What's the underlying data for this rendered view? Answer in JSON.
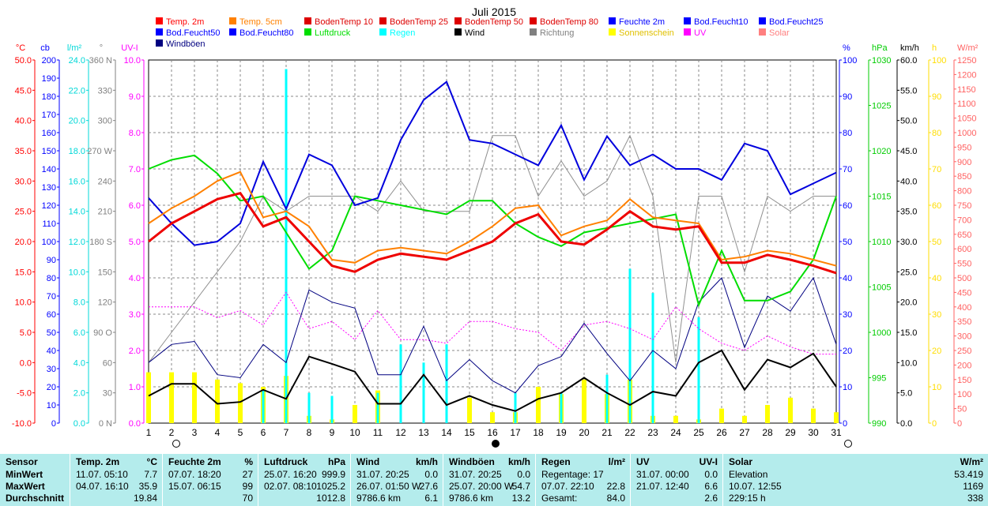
{
  "chart_data": {
    "type": "line",
    "title": "Juli 2015",
    "x": [
      1,
      2,
      3,
      4,
      5,
      6,
      7,
      8,
      9,
      10,
      11,
      12,
      13,
      14,
      15,
      16,
      17,
      18,
      19,
      20,
      21,
      22,
      23,
      24,
      25,
      26,
      27,
      28,
      29,
      30,
      31
    ],
    "axes_left": [
      {
        "unit": "°C",
        "ticks": [
          "50.0",
          "45.0",
          "40.0",
          "35.0",
          "30.0",
          "25.0",
          "20.0",
          "15.0",
          "10.0",
          "5.0",
          "0.0",
          "-5.0",
          "-10.0"
        ],
        "color": "#ff0000"
      },
      {
        "unit": "cb",
        "ticks": [
          "200",
          "190",
          "180",
          "170",
          "160",
          "150",
          "140",
          "130",
          "120",
          "110",
          "100",
          "90",
          "80",
          "70",
          "60",
          "50",
          "40",
          "30",
          "20",
          "10",
          "0"
        ],
        "color": "#0000ff"
      },
      {
        "unit": "l/m²",
        "ticks": [
          "24.0",
          "22.0",
          "20.0",
          "18.0",
          "16.0",
          "14.0",
          "12.0",
          "10.0",
          "8.0",
          "6.0",
          "4.0",
          "2.0",
          "0.0"
        ],
        "color": "#00d8d8"
      },
      {
        "unit": "°",
        "ticks": [
          "360 N",
          "330",
          "300",
          "270 W",
          "240",
          "210",
          "180 S",
          "150",
          "120",
          "90 O",
          "60",
          "30",
          "0 N"
        ],
        "color": "#808080"
      },
      {
        "unit": "UV-I",
        "ticks": [
          "10.0",
          "9.0",
          "8.0",
          "7.0",
          "6.0",
          "5.0",
          "4.0",
          "3.0",
          "2.0",
          "1.0",
          "0.0"
        ],
        "color": "#ff00ff"
      }
    ],
    "axes_right": [
      {
        "unit": "%",
        "ticks": [
          "100",
          "90",
          "80",
          "70",
          "60",
          "50",
          "40",
          "30",
          "20",
          "10",
          "0"
        ],
        "color": "#0000ff"
      },
      {
        "unit": "hPa",
        "ticks": [
          "1030",
          "1025",
          "1020",
          "1015",
          "1010",
          "1005",
          "1000",
          "995",
          "990"
        ],
        "color": "#00cc00"
      },
      {
        "unit": "km/h",
        "ticks": [
          "60.0",
          "55.0",
          "50.0",
          "45.0",
          "40.0",
          "35.0",
          "30.0",
          "25.0",
          "20.0",
          "15.0",
          "10.0",
          "5.0",
          "0.0"
        ],
        "color": "#000000"
      },
      {
        "unit": "h",
        "ticks": [
          "100",
          "90",
          "80",
          "70",
          "60",
          "50",
          "40",
          "30",
          "20",
          "10",
          "0"
        ],
        "color": "#ffdd00"
      },
      {
        "unit": "W/m²",
        "ticks": [
          "1250",
          "1200",
          "1150",
          "1100",
          "1050",
          "1000",
          "950",
          "900",
          "850",
          "800",
          "750",
          "700",
          "650",
          "600",
          "550",
          "500",
          "450",
          "400",
          "350",
          "300",
          "250",
          "200",
          "150",
          "100",
          "50",
          "0"
        ],
        "color": "#ff6060"
      }
    ],
    "legend": [
      {
        "label": "Temp. 2m",
        "color": "#ff0000"
      },
      {
        "label": "Temp. 5cm",
        "color": "#ff8000"
      },
      {
        "label": "BodenTemp 10",
        "color": "#dd0000"
      },
      {
        "label": "BodenTemp 25",
        "color": "#dd0000"
      },
      {
        "label": "BodenTemp 50",
        "color": "#dd0000"
      },
      {
        "label": "BodenTemp 80",
        "color": "#dd0000"
      },
      {
        "label": "Feuchte 2m",
        "color": "#0000ff"
      },
      {
        "label": "Bod.Feucht10",
        "color": "#0000ff"
      },
      {
        "label": "Bod.Feucht25",
        "color": "#0000ff"
      },
      {
        "label": "Bod.Feucht50",
        "color": "#0000ff"
      },
      {
        "label": "Bod.Feucht80",
        "color": "#0000ff"
      },
      {
        "label": "Luftdruck",
        "color": "#00dd00"
      },
      {
        "label": "Regen",
        "color": "#00ffff"
      },
      {
        "label": "Wind",
        "color": "#000000"
      },
      {
        "label": "Richtung",
        "color": "#808080"
      },
      {
        "label": "Sonnenschein",
        "color": "#ffff00"
      },
      {
        "label": "UV",
        "color": "#ff00ff"
      },
      {
        "label": "Solar",
        "color": "#ff8080"
      },
      {
        "label": "Windböen",
        "color": "#000080"
      }
    ],
    "series": [
      {
        "name": "Temp. 2m",
        "values": [
          20.0,
          23.0,
          25.0,
          27.0,
          28.0,
          22.5,
          24.0,
          20.0,
          16.0,
          15.0,
          17.0,
          18.0,
          17.5,
          17.0,
          18.5,
          20.0,
          23.0,
          24.5,
          20.0,
          19.5,
          22.0,
          25.0,
          22.5,
          22.0,
          22.5,
          16.5,
          16.5,
          17.8,
          17.0,
          16.0,
          14.8
        ]
      },
      {
        "name": "Temp. 5cm",
        "values": [
          23.0,
          25.5,
          27.5,
          30.0,
          31.5,
          24.0,
          25.0,
          22.5,
          17.0,
          16.5,
          18.5,
          19.0,
          18.5,
          18.0,
          20.0,
          22.5,
          25.5,
          26.0,
          21.0,
          22.5,
          23.5,
          27.0,
          24.0,
          23.5,
          23.0,
          17.0,
          17.5,
          18.5,
          18.0,
          17.0,
          16.0
        ]
      },
      {
        "name": "Feuchte 2m",
        "values": [
          62,
          55,
          49,
          50,
          55,
          72,
          59,
          74,
          71,
          60,
          62,
          78,
          89,
          94,
          78,
          77,
          74,
          71,
          82,
          67,
          79,
          71,
          74,
          70,
          70,
          67,
          77,
          75,
          63,
          66,
          69
        ]
      },
      {
        "name": "Luftdruck",
        "values": [
          1018.0,
          1019.0,
          1019.5,
          1017.5,
          1014.5,
          1015.0,
          1011.0,
          1007.0,
          1009.0,
          1015.0,
          1014.5,
          1014.0,
          1013.5,
          1013.0,
          1014.5,
          1014.5,
          1012.0,
          1010.5,
          1009.5,
          1011.0,
          1011.5,
          1012.0,
          1012.5,
          1013.0,
          1003.0,
          1009.0,
          1003.5,
          1003.5,
          1004.5,
          1008.0,
          1015.0
        ]
      },
      {
        "name": "Wind",
        "values": [
          4.5,
          6.5,
          6.5,
          3.2,
          3.5,
          5.5,
          4.0,
          11.0,
          9.8,
          8.5,
          3.2,
          3.2,
          8.0,
          3.0,
          4.5,
          3.0,
          2.0,
          4.0,
          5.0,
          7.5,
          5.0,
          3.0,
          5.2,
          4.5,
          10.0,
          12.0,
          5.5,
          10.5,
          9.2,
          11.5,
          6.0
        ]
      },
      {
        "name": "Windböen",
        "values": [
          10.0,
          13.0,
          13.5,
          8.0,
          7.5,
          13.0,
          10.0,
          22.0,
          20.0,
          19.0,
          8.0,
          8.0,
          16.0,
          7.0,
          10.5,
          7.0,
          5.0,
          9.5,
          11.0,
          16.5,
          11.5,
          7.0,
          12.0,
          9.0,
          20.0,
          24.0,
          12.5,
          21.0,
          18.5,
          24.0,
          13.0
        ]
      },
      {
        "name": "Richtung",
        "values": [
          60,
          90,
          120,
          150,
          180,
          225,
          210,
          225,
          225,
          225,
          210,
          240,
          210,
          210,
          210,
          285,
          285,
          225,
          260,
          225,
          240,
          285,
          225,
          60,
          225,
          225,
          150,
          225,
          210,
          225,
          225
        ]
      },
      {
        "name": "Regen",
        "values": [
          0.0,
          0.0,
          0.0,
          0.0,
          0.0,
          2.2,
          23.4,
          2.0,
          1.8,
          0.0,
          2.0,
          5.2,
          4.0,
          5.2,
          0.0,
          0.0,
          2.0,
          0.0,
          2.0,
          0.0,
          3.2,
          10.2,
          8.6,
          0.0,
          7.0,
          0.0,
          0.0,
          0.0,
          0.0,
          0.0,
          0.0
        ]
      },
      {
        "name": "Sonnenschein",
        "values": [
          14,
          14,
          14,
          12,
          11,
          10,
          13,
          2,
          1,
          5,
          9,
          0,
          0,
          0,
          7,
          3,
          3,
          10,
          8,
          12,
          8,
          12,
          2,
          2,
          1,
          4,
          2,
          5,
          7,
          4,
          3
        ]
      },
      {
        "name": "UV",
        "values": [
          3.2,
          3.2,
          3.2,
          2.9,
          3.1,
          2.7,
          3.6,
          2.6,
          2.8,
          2.3,
          3.1,
          2.3,
          2.3,
          2.2,
          2.8,
          2.8,
          2.6,
          2.5,
          2.0,
          2.7,
          2.8,
          2.6,
          2.3,
          3.2,
          2.6,
          2.2,
          2.0,
          2.4,
          2.1,
          1.9,
          1.9
        ]
      }
    ]
  },
  "stats": {
    "headers": [
      {
        "label": "Sensor",
        "unit": ""
      },
      {
        "label": "Temp. 2m",
        "unit": "°C"
      },
      {
        "label": "Feuchte 2m",
        "unit": "%"
      },
      {
        "label": "Luftdruck",
        "unit": "hPa"
      },
      {
        "label": "Wind",
        "unit": "km/h"
      },
      {
        "label": "Windböen",
        "unit": "km/h"
      },
      {
        "label": "Regen",
        "unit": "l/m²"
      },
      {
        "label": "UV",
        "unit": "UV-I"
      },
      {
        "label": "Solar",
        "unit": "W/m²"
      }
    ],
    "row_labels": [
      "MinWert",
      "MaxWert",
      "Durchschnitt"
    ],
    "temp": [
      [
        "11.07.  05:10",
        "7.7"
      ],
      [
        "04.07.  16:10",
        "35.9"
      ],
      [
        "",
        "19.84"
      ]
    ],
    "feuchte": [
      [
        "07.07.  18:20",
        "27"
      ],
      [
        "15.07.  06:15",
        "99"
      ],
      [
        "",
        "70"
      ]
    ],
    "luftdruck": [
      [
        "25.07.  16:20",
        "999.9"
      ],
      [
        "02.07.  08:10",
        "1025.2"
      ],
      [
        "",
        "1012.8"
      ]
    ],
    "wind": [
      [
        "31.07.  20:25",
        "0.0"
      ],
      [
        "26.07.  01:50  W",
        "27.6"
      ],
      [
        "9786.6 km",
        "6.1"
      ]
    ],
    "boeen": [
      [
        "31.07.  20:25",
        "0.0"
      ],
      [
        "25.07.  20:00  W",
        "54.7"
      ],
      [
        "9786.6 km",
        "13.2"
      ]
    ],
    "regen": [
      [
        "Regentage: 17",
        ""
      ],
      [
        "07.07.  22:10",
        "22.8"
      ],
      [
        "Gesamt:",
        "84.0"
      ]
    ],
    "uv": [
      [
        "31.07.  00:00",
        "0.0"
      ],
      [
        "21.07.  12:40",
        "6.6"
      ],
      [
        "",
        "2.6"
      ]
    ],
    "solar": [
      [
        "Elevation",
        "53.419"
      ],
      [
        "10.07.  12:55",
        "1169"
      ],
      [
        "229:15 h",
        "338"
      ]
    ]
  }
}
